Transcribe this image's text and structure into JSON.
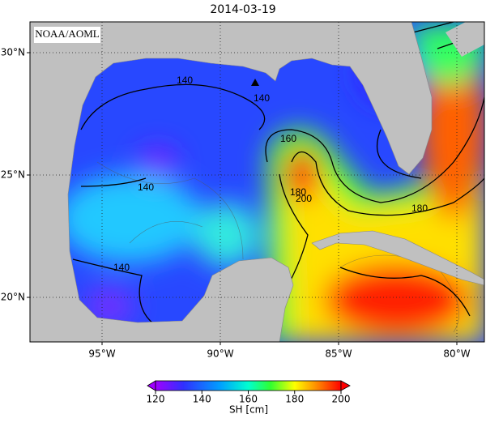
{
  "title": "2014-03-19",
  "map": {
    "credit": "NOAA/AOML",
    "lat_ticks": [
      {
        "value": 30,
        "label": "30°N"
      },
      {
        "value": 25,
        "label": "25°N"
      },
      {
        "value": 20,
        "label": "20°N"
      }
    ],
    "lon_ticks": [
      {
        "value": -95,
        "label": "95°W"
      },
      {
        "value": -90,
        "label": "90°W"
      },
      {
        "value": -85,
        "label": "85°W"
      },
      {
        "value": -80,
        "label": "80°W"
      }
    ],
    "contour_labels": [
      "140",
      "140",
      "140",
      "140",
      "160",
      "180",
      "200",
      "180"
    ]
  },
  "colorbar": {
    "ticks": [
      120,
      140,
      160,
      180,
      200
    ],
    "label": "SH [cm]"
  }
}
